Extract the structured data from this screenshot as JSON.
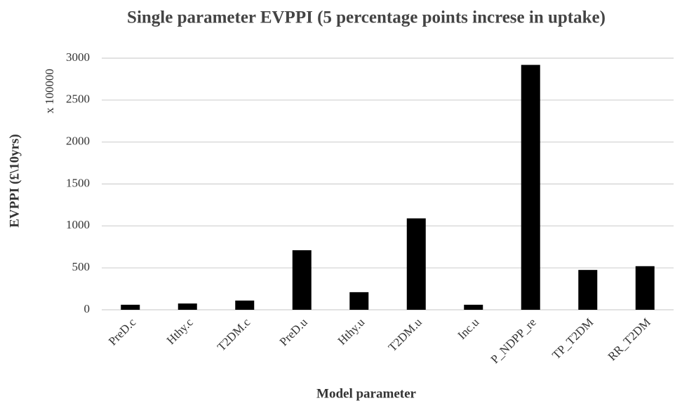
{
  "chart_data": {
    "type": "bar",
    "title": "Single parameter EVPPI (5 percentage points increse in uptake)",
    "x_label": "Model parameter",
    "y_label": "EVPPI (£\\10yrs)",
    "y_multiplier": "x 100000",
    "categories": [
      "PreD.c",
      "Hthy.c",
      "T2DM.c",
      "PreD.u",
      "Hthy.u",
      "T2DM.u",
      "Inc.u",
      "P_NDPP_re",
      "TP_T2DM",
      "RR_T2DM"
    ],
    "values": [
      60,
      75,
      110,
      710,
      210,
      1090,
      60,
      2920,
      475,
      520
    ],
    "color": "#000000",
    "ylim": [
      0,
      3000
    ],
    "yticks": [
      0,
      500,
      1000,
      1500,
      2000,
      2500,
      3000
    ],
    "grid": true
  }
}
